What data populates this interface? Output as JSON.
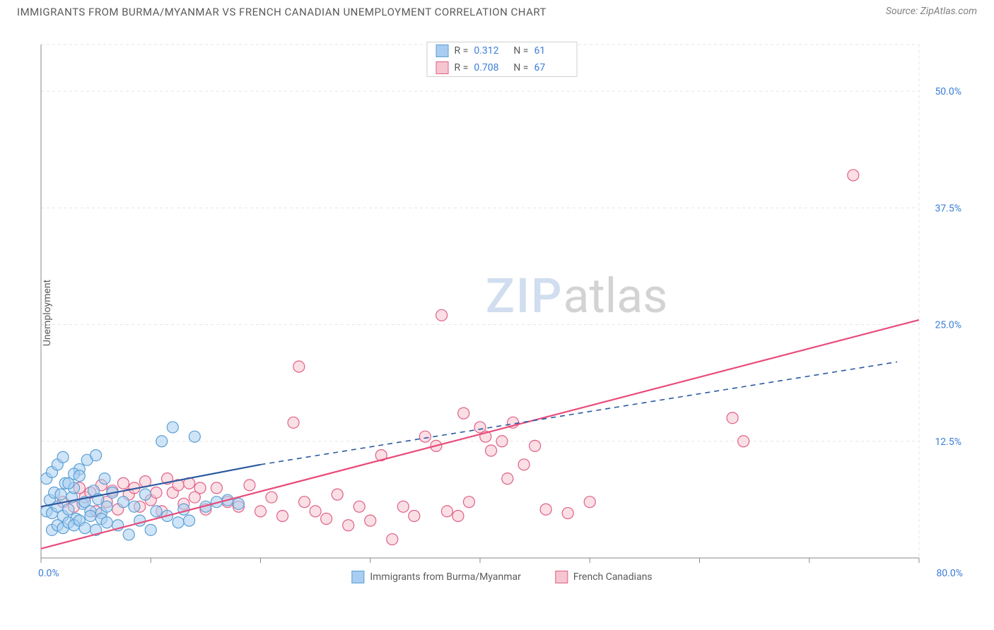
{
  "header": {
    "title": "IMMIGRANTS FROM BURMA/MYANMAR VS FRENCH CANADIAN UNEMPLOYMENT CORRELATION CHART",
    "source_prefix": "Source: ",
    "source_name": "ZipAtlas.com"
  },
  "chart": {
    "type": "scatter",
    "ylabel": "Unemployment",
    "xlim": [
      0,
      80
    ],
    "ylim": [
      0,
      55
    ],
    "xtick_start_label": "0.0%",
    "xtick_end_label": "80.0%",
    "ytick_labels": [
      "12.5%",
      "25.0%",
      "37.5%",
      "50.0%"
    ],
    "ytick_values": [
      12.5,
      25.0,
      37.5,
      50.0
    ],
    "xtick_values": [
      0,
      10,
      20,
      30,
      40,
      50,
      60,
      70,
      80
    ],
    "grid_color": "#e5e5e5",
    "axis_line_color": "#888888",
    "background_color": "#ffffff",
    "tick_label_color": "#3b7dd8",
    "font_size": 14,
    "marker_radius": 8,
    "marker_stroke_width": 1.2,
    "line_width_solid": 2.2,
    "line_width_dash": 1.6,
    "series": [
      {
        "name": "Immigrants from Burma/Myanmar",
        "fill_color": "#a8cdf0",
        "stroke_color": "#5a9fd4",
        "fill_opacity": 0.55,
        "R": "0.312",
        "N": "61",
        "trend": {
          "x1": 0,
          "y1": 5.5,
          "x2": 20,
          "y2": 10.0,
          "solid_until_x": 20,
          "dash_to_x": 78,
          "dash_to_y": 21.0,
          "color": "#2b5aa0"
        },
        "points": [
          [
            0.5,
            5.0
          ],
          [
            0.8,
            6.2
          ],
          [
            1.0,
            4.8
          ],
          [
            1.2,
            7.0
          ],
          [
            1.5,
            5.5
          ],
          [
            1.8,
            6.8
          ],
          [
            2.0,
            4.5
          ],
          [
            2.2,
            8.0
          ],
          [
            2.5,
            5.2
          ],
          [
            2.8,
            6.5
          ],
          [
            3.0,
            7.5
          ],
          [
            3.2,
            4.2
          ],
          [
            3.5,
            9.5
          ],
          [
            3.8,
            5.8
          ],
          [
            4.0,
            6.0
          ],
          [
            4.2,
            10.5
          ],
          [
            4.5,
            5.0
          ],
          [
            4.8,
            7.2
          ],
          [
            5.0,
            11.0
          ],
          [
            5.2,
            6.3
          ],
          [
            5.5,
            4.8
          ],
          [
            5.8,
            8.5
          ],
          [
            6.0,
            5.5
          ],
          [
            6.5,
            7.0
          ],
          [
            7.0,
            3.5
          ],
          [
            7.5,
            6.0
          ],
          [
            8.0,
            2.5
          ],
          [
            8.5,
            5.5
          ],
          [
            9.0,
            4.0
          ],
          [
            9.5,
            6.8
          ],
          [
            10.0,
            3.0
          ],
          [
            10.5,
            5.0
          ],
          [
            11.0,
            12.5
          ],
          [
            11.5,
            4.5
          ],
          [
            12.0,
            14.0
          ],
          [
            12.5,
            3.8
          ],
          [
            13.0,
            5.2
          ],
          [
            13.5,
            4.0
          ],
          [
            14.0,
            13.0
          ],
          [
            15.0,
            5.5
          ],
          [
            16.0,
            6.0
          ],
          [
            17.0,
            6.2
          ],
          [
            18.0,
            5.8
          ],
          [
            1.0,
            3.0
          ],
          [
            1.5,
            3.5
          ],
          [
            2.0,
            3.2
          ],
          [
            2.5,
            3.8
          ],
          [
            3.0,
            3.5
          ],
          [
            3.5,
            4.0
          ],
          [
            4.0,
            3.2
          ],
          [
            4.5,
            4.5
          ],
          [
            5.0,
            3.0
          ],
          [
            5.5,
            4.2
          ],
          [
            6.0,
            3.8
          ],
          [
            0.5,
            8.5
          ],
          [
            1.0,
            9.2
          ],
          [
            1.5,
            10.0
          ],
          [
            2.0,
            10.8
          ],
          [
            2.5,
            8.0
          ],
          [
            3.0,
            9.0
          ],
          [
            3.5,
            8.8
          ]
        ]
      },
      {
        "name": "French Canadians",
        "fill_color": "#f5c5d0",
        "stroke_color": "#e06088",
        "fill_opacity": 0.55,
        "R": "0.708",
        "N": "67",
        "trend": {
          "x1": 0,
          "y1": 1.0,
          "x2": 80,
          "y2": 25.5,
          "color": "#e94b7a"
        },
        "points": [
          [
            2.0,
            6.0
          ],
          [
            3.0,
            5.5
          ],
          [
            4.0,
            6.5
          ],
          [
            5.0,
            5.0
          ],
          [
            6.0,
            6.0
          ],
          [
            7.0,
            5.2
          ],
          [
            8.0,
            6.8
          ],
          [
            9.0,
            5.5
          ],
          [
            10.0,
            6.2
          ],
          [
            11.0,
            5.0
          ],
          [
            12.0,
            7.0
          ],
          [
            13.0,
            5.8
          ],
          [
            14.0,
            6.5
          ],
          [
            15.0,
            5.2
          ],
          [
            16.0,
            7.5
          ],
          [
            17.0,
            6.0
          ],
          [
            18.0,
            5.5
          ],
          [
            19.0,
            7.8
          ],
          [
            20.0,
            5.0
          ],
          [
            21.0,
            6.5
          ],
          [
            22.0,
            4.5
          ],
          [
            23.0,
            14.5
          ],
          [
            23.5,
            20.5
          ],
          [
            24.0,
            6.0
          ],
          [
            25.0,
            5.0
          ],
          [
            26.0,
            4.2
          ],
          [
            27.0,
            6.8
          ],
          [
            28.0,
            3.5
          ],
          [
            29.0,
            5.5
          ],
          [
            30.0,
            4.0
          ],
          [
            31.0,
            11.0
          ],
          [
            32.0,
            2.0
          ],
          [
            33.0,
            5.5
          ],
          [
            34.0,
            4.5
          ],
          [
            35.0,
            13.0
          ],
          [
            36.0,
            12.0
          ],
          [
            36.5,
            26.0
          ],
          [
            37.0,
            5.0
          ],
          [
            38.0,
            4.5
          ],
          [
            38.5,
            15.5
          ],
          [
            39.0,
            6.0
          ],
          [
            40.0,
            14.0
          ],
          [
            40.5,
            13.0
          ],
          [
            41.0,
            11.5
          ],
          [
            42.0,
            12.5
          ],
          [
            42.5,
            8.5
          ],
          [
            43.0,
            14.5
          ],
          [
            44.0,
            10.0
          ],
          [
            45.0,
            12.0
          ],
          [
            46.0,
            5.2
          ],
          [
            48.0,
            4.8
          ],
          [
            50.0,
            6.0
          ],
          [
            63.0,
            15.0
          ],
          [
            64.0,
            12.5
          ],
          [
            74.0,
            41.0
          ],
          [
            3.5,
            7.5
          ],
          [
            4.5,
            7.0
          ],
          [
            5.5,
            7.8
          ],
          [
            6.5,
            7.2
          ],
          [
            7.5,
            8.0
          ],
          [
            8.5,
            7.5
          ],
          [
            9.5,
            8.2
          ],
          [
            10.5,
            7.0
          ],
          [
            11.5,
            8.5
          ],
          [
            12.5,
            7.8
          ],
          [
            13.5,
            8.0
          ],
          [
            14.5,
            7.5
          ]
        ]
      }
    ]
  },
  "legend_top": {
    "R_label": "R  =",
    "N_label": "N  ="
  },
  "watermark": {
    "zip": "ZIP",
    "atlas": "atlas"
  }
}
